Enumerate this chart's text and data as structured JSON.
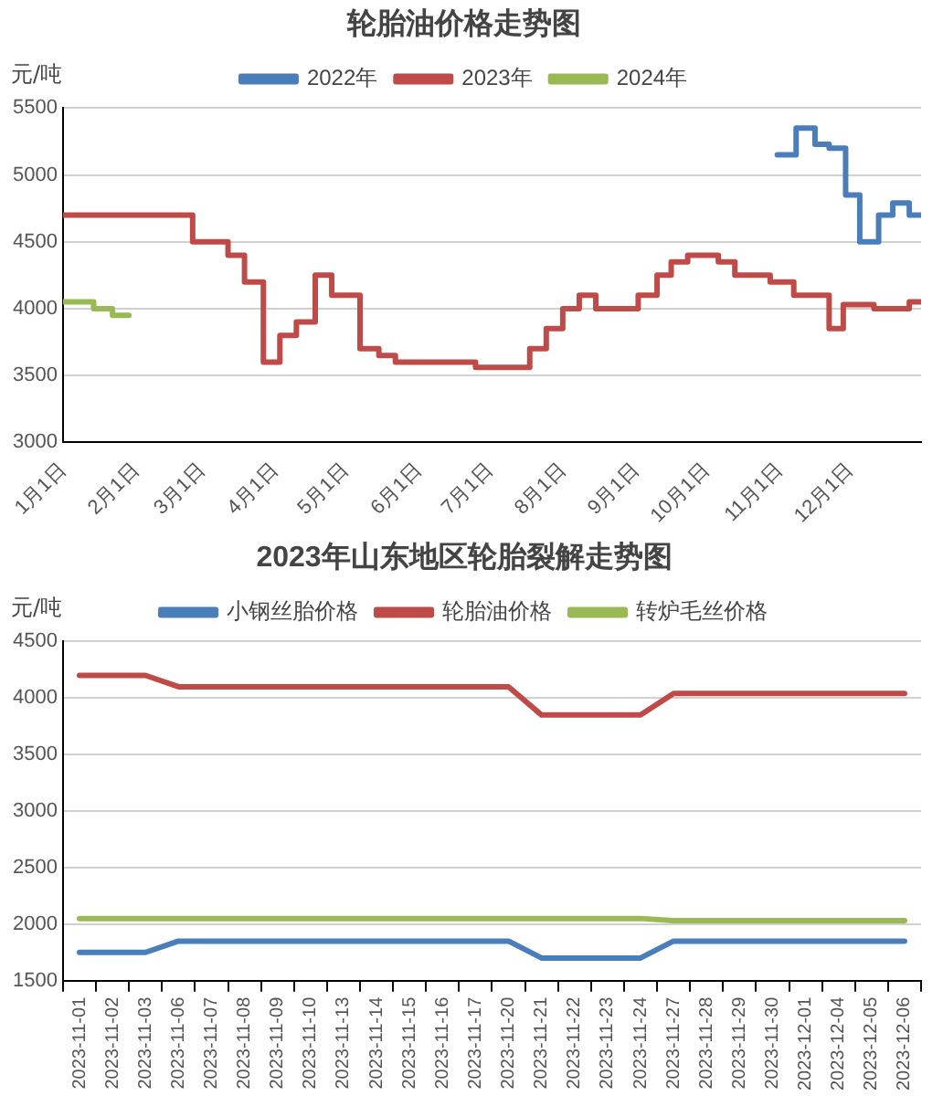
{
  "chart_data": [
    {
      "type": "step",
      "title": "轮胎油价格走势图",
      "ylabel": "元/吨",
      "xlim": [
        "--01-01",
        "--12-31"
      ],
      "xticks": [
        {
          "value": "--01-01",
          "label": "1月1日"
        },
        {
          "value": "--02-01",
          "label": "2月1日"
        },
        {
          "value": "--03-01",
          "label": "3月1日"
        },
        {
          "value": "--04-01",
          "label": "4月1日"
        },
        {
          "value": "--05-01",
          "label": "5月1日"
        },
        {
          "value": "--06-01",
          "label": "6月1日"
        },
        {
          "value": "--07-01",
          "label": "7月1日"
        },
        {
          "value": "--08-01",
          "label": "8月1日"
        },
        {
          "value": "--09-01",
          "label": "9月1日"
        },
        {
          "value": "--10-01",
          "label": "10月1日"
        },
        {
          "value": "--11-01",
          "label": "11月1日"
        },
        {
          "value": "--12-01",
          "label": "12月1日"
        }
      ],
      "ylim": [
        3000,
        5500
      ],
      "yticks": [
        3000,
        3500,
        4000,
        4500,
        5000,
        5500
      ],
      "grid": "y",
      "legend": "top",
      "marker": "none",
      "line_style": "solid",
      "series": [
        {
          "name": "2022年",
          "color": "#4a7ebb",
          "x": [
            "--10-31",
            "--11-08",
            "--11-16",
            "--11-22",
            "--11-29",
            "--12-05",
            "--12-13",
            "--12-19",
            "--12-26",
            "--12-31"
          ],
          "values": [
            5150,
            5350,
            5230,
            5200,
            4850,
            4500,
            4700,
            4790,
            4700,
            4700
          ]
        },
        {
          "name": "2023年",
          "color": "#be4b48",
          "x": [
            "--01-01",
            "--02-25",
            "--03-12",
            "--03-19",
            "--03-27",
            "--04-03",
            "--04-10",
            "--04-18",
            "--04-25",
            "--05-07",
            "--05-15",
            "--05-22",
            "--06-25",
            "--07-18",
            "--07-25",
            "--08-01",
            "--08-08",
            "--08-15",
            "--09-02",
            "--09-10",
            "--09-16",
            "--09-23",
            "--10-06",
            "--10-13",
            "--10-28",
            "--11-07",
            "--11-22",
            "--11-28",
            "--12-11",
            "--12-26",
            "--12-31"
          ],
          "values": [
            4700,
            4500,
            4400,
            4200,
            3600,
            3800,
            3900,
            4250,
            4100,
            3700,
            3650,
            3600,
            3560,
            3700,
            3850,
            4000,
            4100,
            4000,
            4100,
            4250,
            4350,
            4400,
            4350,
            4250,
            4200,
            4100,
            3850,
            4030,
            4000,
            4050,
            4050
          ]
        },
        {
          "name": "2024年",
          "color": "#98b954",
          "x": [
            "--01-01",
            "--01-14",
            "--01-22",
            "--01-29"
          ],
          "values": [
            4050,
            4000,
            3950,
            3950
          ]
        }
      ]
    },
    {
      "type": "line",
      "title": "2023年山东地区轮胎裂解走势图",
      "ylabel": "元/吨",
      "categories": [
        "2023-11-01",
        "2023-11-02",
        "2023-11-03",
        "2023-11-06",
        "2023-11-07",
        "2023-11-08",
        "2023-11-09",
        "2023-11-10",
        "2023-11-13",
        "2023-11-14",
        "2023-11-15",
        "2023-11-16",
        "2023-11-17",
        "2023-11-20",
        "2023-11-21",
        "2023-11-22",
        "2023-11-23",
        "2023-11-24",
        "2023-11-27",
        "2023-11-28",
        "2023-11-29",
        "2023-11-30",
        "2023-12-01",
        "2023-12-04",
        "2023-12-05",
        "2023-12-06"
      ],
      "ylim": [
        1500,
        4500
      ],
      "yticks": [
        1500,
        2000,
        2500,
        3000,
        3500,
        4000,
        4500
      ],
      "grid": "y",
      "legend": "top",
      "marker": "none",
      "line_style": "solid",
      "series": [
        {
          "name": "小钢丝胎价格",
          "color": "#4a7ebb",
          "values": [
            1750,
            1750,
            1750,
            1850,
            1850,
            1850,
            1850,
            1850,
            1850,
            1850,
            1850,
            1850,
            1850,
            1850,
            1700,
            1700,
            1700,
            1700,
            1850,
            1850,
            1850,
            1850,
            1850,
            1850,
            1850,
            1850
          ]
        },
        {
          "name": "轮胎油价格",
          "color": "#be4b48",
          "values": [
            4200,
            4200,
            4200,
            4100,
            4100,
            4100,
            4100,
            4100,
            4100,
            4100,
            4100,
            4100,
            4100,
            4100,
            3850,
            3850,
            3850,
            3850,
            4040,
            4040,
            4040,
            4040,
            4040,
            4040,
            4040,
            4040
          ]
        },
        {
          "name": "转炉毛丝价格",
          "color": "#98b954",
          "values": [
            2050,
            2050,
            2050,
            2050,
            2050,
            2050,
            2050,
            2050,
            2050,
            2050,
            2050,
            2050,
            2050,
            2050,
            2050,
            2050,
            2050,
            2050,
            2030,
            2030,
            2030,
            2030,
            2030,
            2030,
            2030,
            2030
          ]
        }
      ]
    }
  ]
}
